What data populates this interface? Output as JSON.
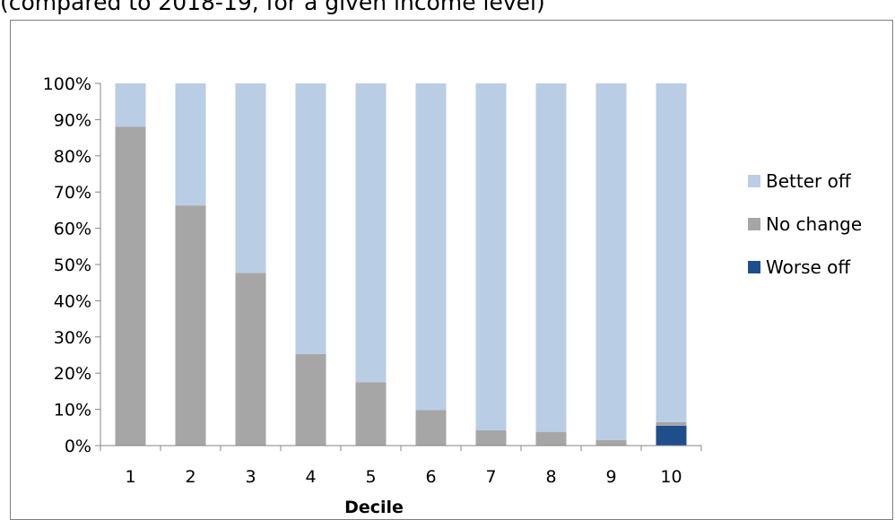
{
  "caption": "(compared to 2018-19, for a given income level)",
  "chart_data": {
    "type": "bar",
    "stacked": true,
    "categories": [
      "1",
      "2",
      "3",
      "4",
      "5",
      "6",
      "7",
      "8",
      "9",
      "10"
    ],
    "series": [
      {
        "name": "Worse off",
        "color": "#1f4e8c",
        "values": [
          0,
          0,
          0,
          0,
          0,
          0,
          0,
          0,
          0,
          5.5
        ]
      },
      {
        "name": "No change",
        "color": "#a6a6a6",
        "values": [
          88,
          66.3,
          47.7,
          25.3,
          17.5,
          9.8,
          4.2,
          3.8,
          1.5,
          1
        ]
      },
      {
        "name": "Better off",
        "color": "#b9cde5",
        "values": [
          12,
          33.7,
          52.3,
          74.7,
          82.5,
          90.2,
          95.8,
          96.2,
          98.5,
          93.5
        ]
      }
    ],
    "legend_order": [
      "Better off",
      "No change",
      "Worse off"
    ],
    "xlabel": "Decile",
    "ylabel": "",
    "ylim": [
      0,
      100
    ],
    "yticks": [
      "0%",
      "10%",
      "20%",
      "30%",
      "40%",
      "50%",
      "60%",
      "70%",
      "80%",
      "90%",
      "100%"
    ],
    "grid": false,
    "legend_position": "right"
  }
}
